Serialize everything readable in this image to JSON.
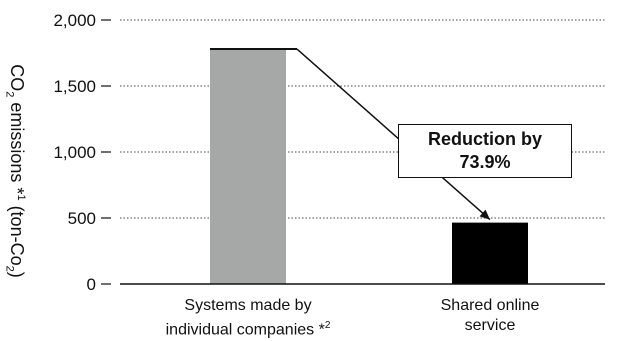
{
  "chart_data": {
    "type": "bar",
    "categories": [
      "Systems made by individual companies *2",
      "Shared online service"
    ],
    "values": [
      1780,
      465
    ],
    "bar_colors": [
      "#a6a8a7",
      "#000000"
    ],
    "ylim": [
      0,
      2000
    ],
    "yticks": [
      "0",
      "500",
      "1,000",
      "1,500",
      "2,000"
    ],
    "ylabel": {
      "pre": "CO",
      "sub1": "2",
      "mid": " emissions *",
      "sup": "1",
      "post": " (ton-Co",
      "sub2": "2",
      "end": ")"
    },
    "category_lines": [
      {
        "line1": "Systems made by",
        "line2": "individual companies *",
        "sup": "2"
      },
      {
        "line1": "Shared online",
        "line2": "service",
        "sup": ""
      }
    ],
    "annotation": {
      "line1": "Reduction by",
      "line2": "73.9%"
    },
    "grid": true
  }
}
